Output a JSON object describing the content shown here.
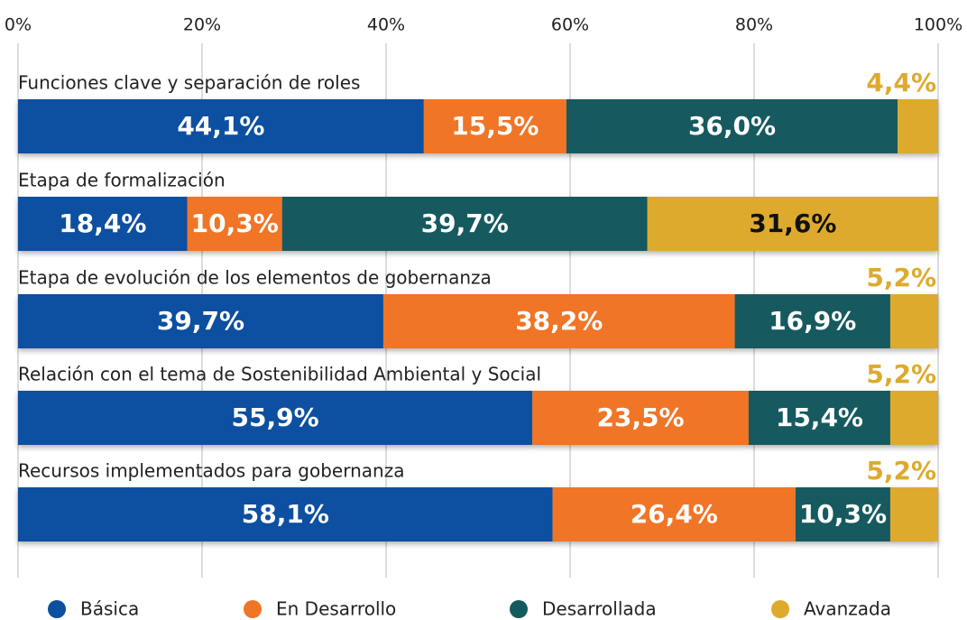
{
  "chart_data": {
    "type": "stacked_barh",
    "categories": [
      "Funciones clave y separación de roles",
      "Etapa de formalización",
      "Etapa de evolución de los elementos de gobernanza",
      "Relación con el tema de Sostenibilidad Ambiental y Social",
      "Recursos implementados para gobernanza"
    ],
    "series": [
      {
        "name": "Básica",
        "color": "#0a4fa0",
        "values": [
          44.1,
          18.4,
          39.7,
          55.9,
          58.1
        ],
        "value_labels": [
          "44,1%",
          "18,4%",
          "39,7%",
          "55,9%",
          "58,1%"
        ]
      },
      {
        "name": "En Desarrollo",
        "color": "#f07526",
        "values": [
          15.5,
          10.3,
          38.2,
          23.5,
          26.4
        ],
        "value_labels": [
          "15,5%",
          "10,3%",
          "38,2%",
          "23,5%",
          "26,4%"
        ]
      },
      {
        "name": "Desarrollada",
        "color": "#135a5e",
        "values": [
          36.0,
          39.7,
          16.9,
          15.4,
          10.3
        ],
        "value_labels": [
          "36,0%",
          "39,7%",
          "16,9%",
          "15,4%",
          "10,3%"
        ]
      },
      {
        "name": "Avanzada",
        "color": "#ddaa2e",
        "values": [
          4.4,
          31.6,
          5.2,
          5.2,
          5.2
        ],
        "value_labels": [
          "4,4%",
          "31,6%",
          "5,2%",
          "5,2%",
          "5,2%"
        ]
      }
    ],
    "xlim": [
      0,
      100
    ],
    "xticks": [
      {
        "value": 0,
        "label": "0%"
      },
      {
        "value": 20,
        "label": "20%"
      },
      {
        "value": 40,
        "label": "40%"
      },
      {
        "value": 60,
        "label": "60%"
      },
      {
        "value": 80,
        "label": "80%"
      },
      {
        "value": 100,
        "label": "100%"
      }
    ],
    "grid": true,
    "legend": "bottom"
  }
}
